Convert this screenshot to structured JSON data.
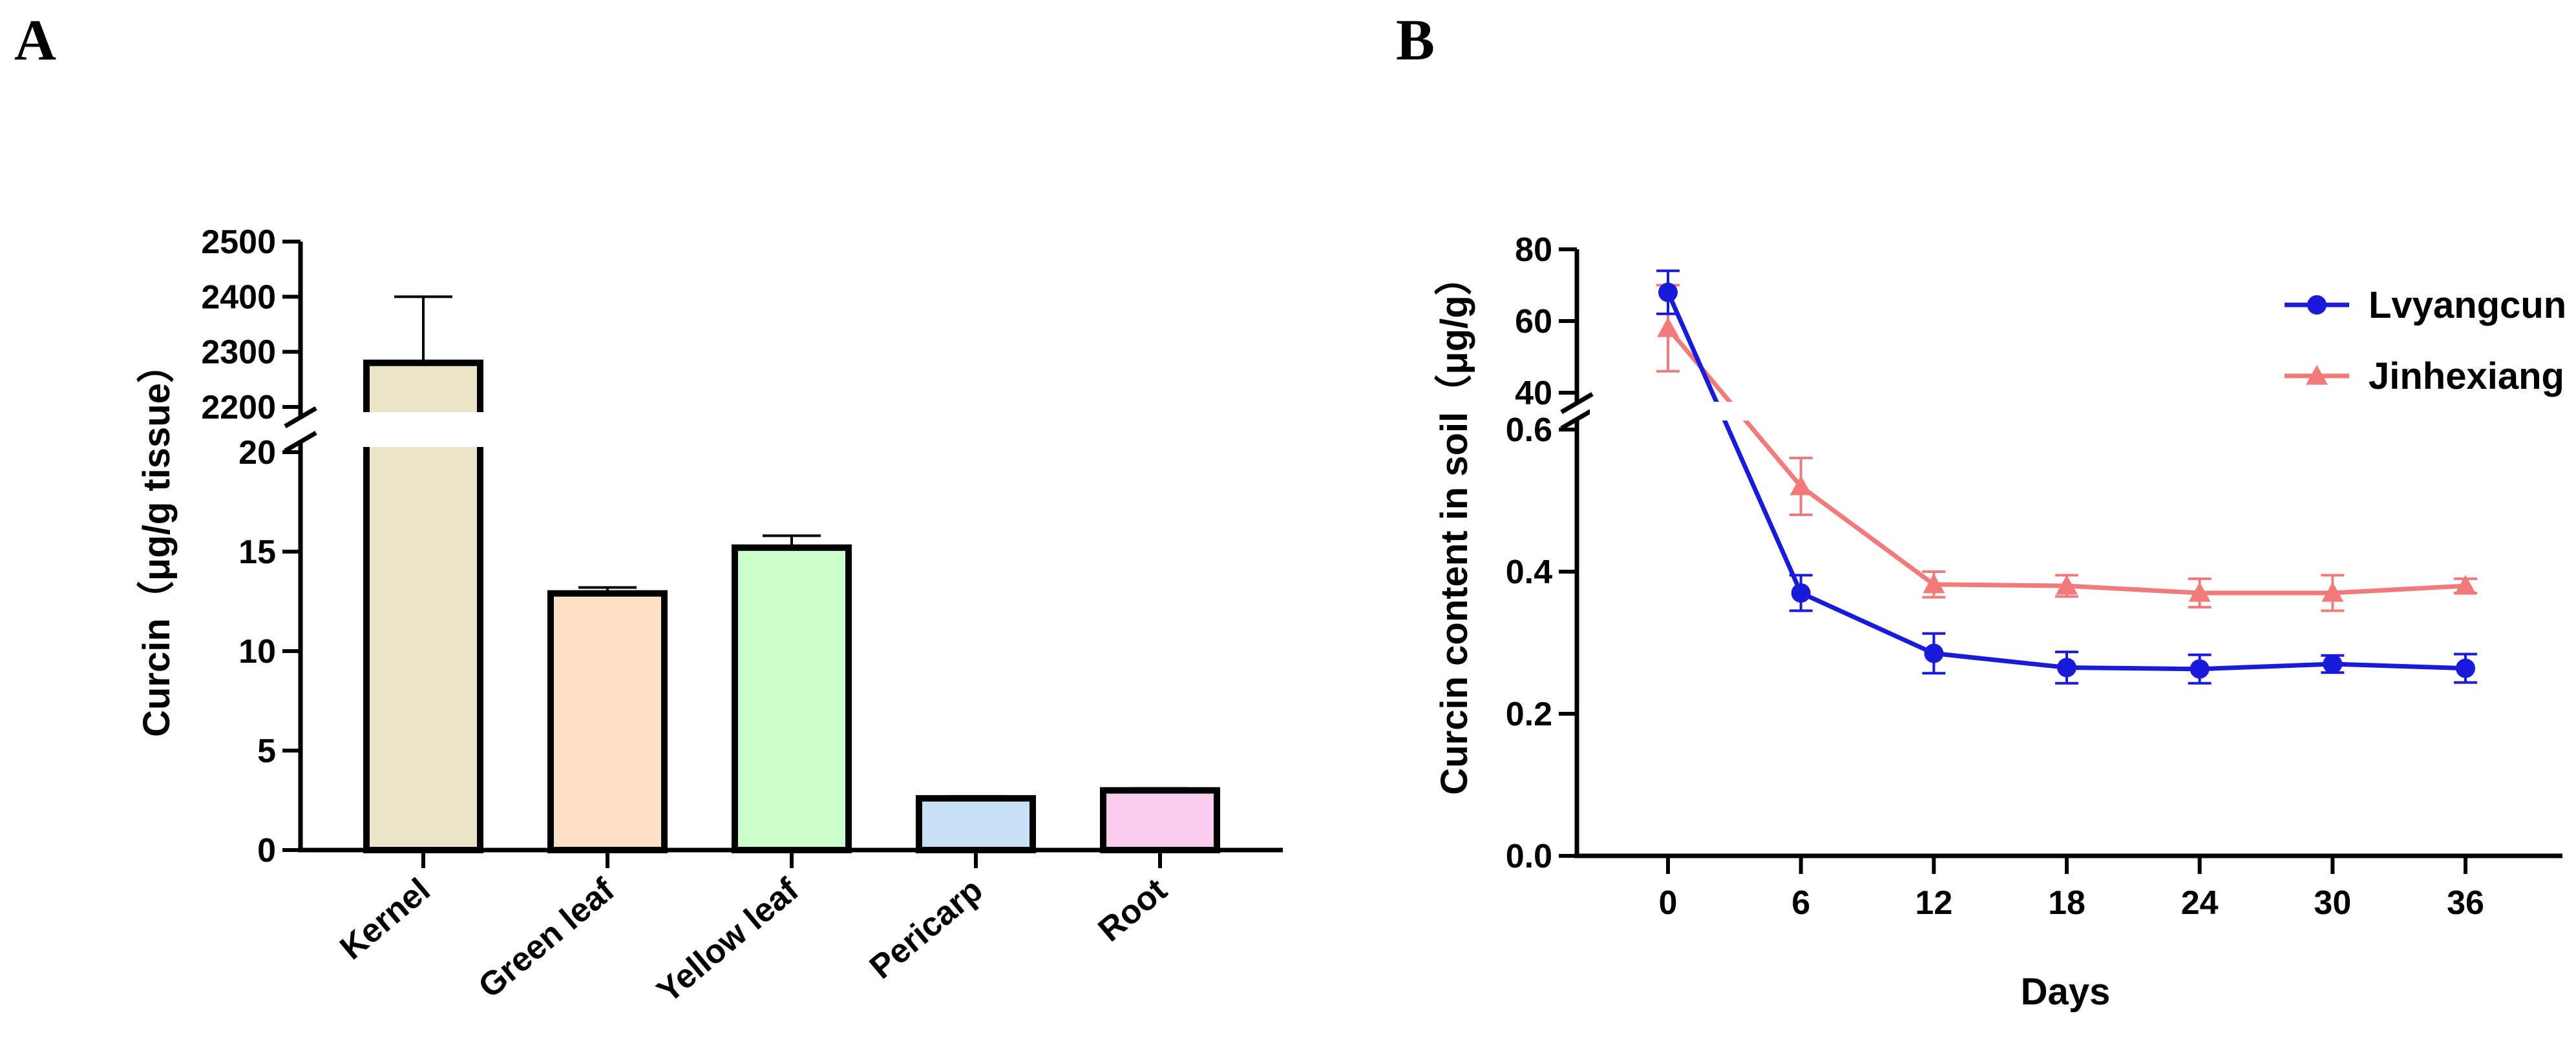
{
  "chart_data": [
    {
      "panel": "A",
      "type": "bar",
      "ylabel": "Curcin（μg/g tissue）",
      "xlabel": "",
      "categories": [
        "Kernel",
        "Green leaf",
        "Yellow leaf",
        "Pericarp",
        "Root"
      ],
      "values": [
        2280,
        12.9,
        15.2,
        2.6,
        3.0
      ],
      "errors": [
        120,
        0.3,
        0.6,
        0.1,
        0.1
      ],
      "colors": [
        "#ebe4c6",
        "#fde0c5",
        "#ccffcc",
        "#c9dff5",
        "#f9ccee"
      ],
      "axis_break": true,
      "lower_ylim": [
        0,
        20
      ],
      "lower_ticks": [
        0,
        5,
        10,
        15,
        20
      ],
      "upper_ylim": [
        2200,
        2500
      ],
      "upper_ticks": [
        2200,
        2300,
        2400,
        2500
      ]
    },
    {
      "panel": "B",
      "type": "line",
      "ylabel": "Curcin content in soil（μg/g）",
      "xlabel": "Days",
      "x": [
        0,
        6,
        12,
        18,
        24,
        30,
        36
      ],
      "xticks": [
        0,
        6,
        12,
        18,
        24,
        30,
        36
      ],
      "xlim": [
        -5,
        40
      ],
      "axis_break": true,
      "lower_ylim": [
        0,
        0.6
      ],
      "lower_ticks": [
        "0.0",
        "0.2",
        "0.4",
        "0.6"
      ],
      "upper_ylim": [
        40,
        80
      ],
      "upper_ticks": [
        40,
        60,
        80
      ],
      "legend_position": "top-right",
      "series": [
        {
          "name": "Lvyangcun",
          "color": "#1a1adb",
          "marker": "circle",
          "values": [
            68,
            0.37,
            0.285,
            0.265,
            0.263,
            0.27,
            0.264
          ],
          "errors": [
            6,
            0.025,
            0.028,
            0.022,
            0.02,
            0.012,
            0.02
          ]
        },
        {
          "name": "Jinhexiang",
          "color": "#f27a7a",
          "marker": "triangle",
          "values": [
            58,
            0.52,
            0.382,
            0.38,
            0.37,
            0.37,
            0.38
          ],
          "errors": [
            12,
            0.04,
            0.018,
            0.015,
            0.02,
            0.025,
            0.01
          ]
        }
      ]
    }
  ]
}
